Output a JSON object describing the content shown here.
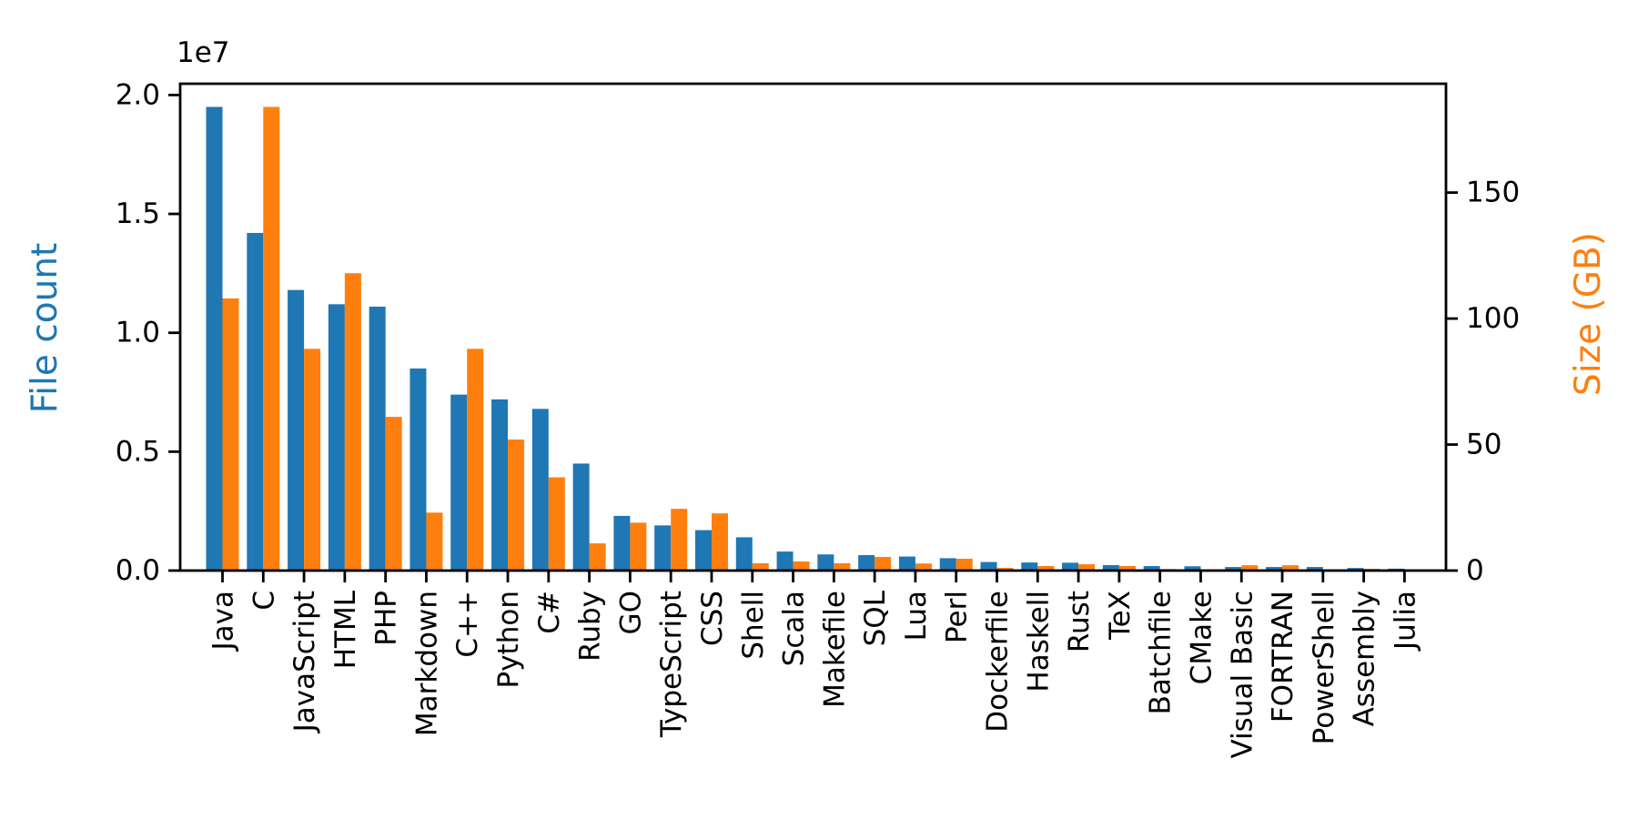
{
  "figure": {
    "background": "#ffffff"
  },
  "chart_data": {
    "type": "bar",
    "title": "",
    "categories": [
      "Java",
      "C",
      "JavaScript",
      "HTML",
      "PHP",
      "Markdown",
      "C++",
      "Python",
      "C#",
      "Ruby",
      "GO",
      "TypeScript",
      "CSS",
      "Shell",
      "Scala",
      "Makefile",
      "SQL",
      "Lua",
      "Perl",
      "Dockerfile",
      "Haskell",
      "Rust",
      "TeX",
      "Batchfile",
      "CMake",
      "Visual Basic",
      "FORTRAN",
      "PowerShell",
      "Assembly",
      "Julia"
    ],
    "series": [
      {
        "name": "File count",
        "axis": "left",
        "color": "#1f77b4",
        "values": [
          19500000,
          14200000,
          11800000,
          11200000,
          11100000,
          8500000,
          7400000,
          7200000,
          6800000,
          4500000,
          2300000,
          1900000,
          1700000,
          1400000,
          800000,
          680000,
          650000,
          590000,
          520000,
          360000,
          340000,
          330000,
          230000,
          190000,
          180000,
          150000,
          150000,
          150000,
          110000,
          80000
        ]
      },
      {
        "name": "Size (GB)",
        "axis": "right",
        "color": "#ff7f0e",
        "values": [
          108,
          184,
          88,
          118,
          61,
          23,
          88,
          52,
          37,
          10.8,
          19,
          24.5,
          22.7,
          2.9,
          3.6,
          2.9,
          5.4,
          2.8,
          4.7,
          1.1,
          1.8,
          2.5,
          1.8,
          0.6,
          0.3,
          2.1,
          2.1,
          0.4,
          0.7,
          0.25
        ]
      }
    ],
    "left_axis": {
      "label": "File count",
      "label_color": "#1f77b4",
      "offset_label": "1e7",
      "tick_values": [
        0,
        5000000,
        10000000,
        15000000,
        20000000
      ],
      "tick_labels": [
        "0.0",
        "0.5",
        "1.0",
        "1.5",
        "2.0"
      ],
      "max": 20475000
    },
    "right_axis": {
      "label": "Size (GB)",
      "label_color": "#ff7f0e",
      "tick_values": [
        0,
        50,
        100,
        150
      ],
      "tick_labels": [
        "0",
        "50",
        "100",
        "150"
      ],
      "max": 193.2
    },
    "x_axis": {
      "tick_label_rotation": 90
    },
    "grid": false,
    "legend": "none",
    "spine_color": "#000000",
    "tick_label_color": "#000000"
  }
}
